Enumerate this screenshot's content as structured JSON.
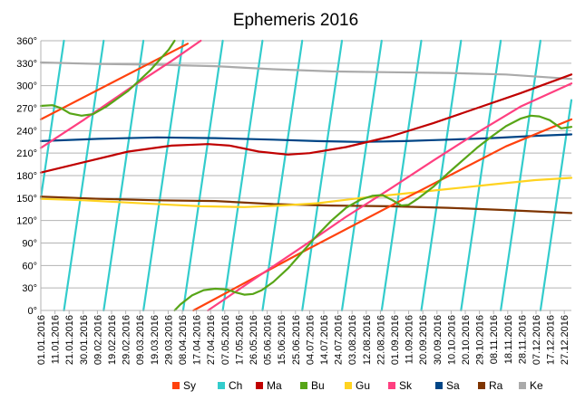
{
  "chart_data": {
    "type": "line",
    "title": "Ephemeris 2016",
    "xlabel": "",
    "ylabel": "",
    "ylim": [
      0,
      360
    ],
    "yticks": [
      "0°",
      "30°",
      "60°",
      "90°",
      "120°",
      "150°",
      "180°",
      "210°",
      "240°",
      "270°",
      "300°",
      "330°",
      "360°"
    ],
    "xticks": [
      "01.01.2016",
      "11.01.2016",
      "21.01.2016",
      "30.01.2016",
      "09.02.2016",
      "19.02.2016",
      "29.02.2016",
      "09.03.2016",
      "19.03.2016",
      "29.03.2016",
      "08.04.2016",
      "17.04.2016",
      "27.04.2016",
      "07.05.2016",
      "17.05.2016",
      "26.05.2016",
      "05.06.2016",
      "15.06.2016",
      "25.06.2016",
      "04.07.2016",
      "14.07.2016",
      "24.07.2016",
      "03.08.2016",
      "12.08.2016",
      "22.08.2016",
      "01.09.2016",
      "11.09.2016",
      "20.09.2016",
      "30.09.2016",
      "10.10.2016",
      "20.10.2016",
      "29.10.2016",
      "08.11.2016",
      "18.11.2016",
      "28.11.2016",
      "07.12.2016",
      "17.12.2016",
      "27.12.2016"
    ],
    "grid": true,
    "legend": "bottom",
    "x_unit_days": [
      0,
      365
    ],
    "series": [
      {
        "name": "Sy",
        "color": "#ff420e",
        "wrap": true,
        "points": [
          [
            0,
            255
          ],
          [
            75,
            330
          ],
          [
            101,
            356
          ],
          [
            105,
            0
          ],
          [
            180,
            78
          ],
          [
            250,
            149
          ],
          [
            320,
            219
          ],
          [
            365,
            255
          ]
        ]
      },
      {
        "name": "Ch",
        "color": "#33cccc",
        "wrap": true,
        "linear": {
          "start": 150,
          "rate": 13.18
        }
      },
      {
        "name": "Ma",
        "color": "#c00000",
        "wrap": true,
        "points": [
          [
            0,
            184
          ],
          [
            30,
            198
          ],
          [
            60,
            212
          ],
          [
            90,
            220
          ],
          [
            115,
            222
          ],
          [
            130,
            220
          ],
          [
            150,
            212
          ],
          [
            170,
            208
          ],
          [
            185,
            210
          ],
          [
            210,
            218
          ],
          [
            240,
            232
          ],
          [
            270,
            250
          ],
          [
            300,
            270
          ],
          [
            330,
            290
          ],
          [
            365,
            315
          ]
        ]
      },
      {
        "name": "Bu",
        "color": "#57a517",
        "wrap": true,
        "points": [
          [
            0,
            273
          ],
          [
            8,
            274
          ],
          [
            14,
            270
          ],
          [
            20,
            263
          ],
          [
            28,
            260
          ],
          [
            36,
            262
          ],
          [
            45,
            272
          ],
          [
            60,
            293
          ],
          [
            75,
            320
          ],
          [
            88,
            348
          ],
          [
            92,
            360
          ]
        ],
        "segments": [
          [
            [
              92,
              0
            ],
            [
              96,
              8
            ],
            [
              104,
              20
            ],
            [
              112,
              27
            ],
            [
              120,
              29
            ],
            [
              128,
              28
            ],
            [
              134,
              24
            ],
            [
              140,
              21
            ],
            [
              146,
              22
            ],
            [
              152,
              27
            ],
            [
              160,
              38
            ],
            [
              170,
              56
            ],
            [
              180,
              78
            ],
            [
              190,
              100
            ],
            [
              200,
              120
            ],
            [
              210,
              137
            ],
            [
              220,
              148
            ],
            [
              228,
              153
            ],
            [
              235,
              154
            ],
            [
              242,
              147
            ],
            [
              248,
              140
            ],
            [
              253,
              141
            ],
            [
              260,
              150
            ],
            [
              270,
              165
            ],
            [
              280,
              183
            ],
            [
              290,
              200
            ],
            [
              300,
              217
            ],
            [
              310,
              232
            ],
            [
              320,
              246
            ],
            [
              330,
              256
            ],
            [
              337,
              260
            ],
            [
              343,
              259
            ],
            [
              350,
              254
            ],
            [
              358,
              243
            ],
            [
              365,
              245
            ]
          ]
        ]
      },
      {
        "name": "Gu",
        "color": "#ffd320",
        "wrap": false,
        "points": [
          [
            0,
            149
          ],
          [
            30,
            147
          ],
          [
            60,
            144
          ],
          [
            90,
            141
          ],
          [
            110,
            139
          ],
          [
            140,
            138
          ],
          [
            165,
            140
          ],
          [
            190,
            143
          ],
          [
            220,
            150
          ],
          [
            250,
            156
          ],
          [
            280,
            162
          ],
          [
            310,
            168
          ],
          [
            340,
            174
          ],
          [
            365,
            177
          ]
        ]
      },
      {
        "name": "Sk",
        "color": "#ff3f80",
        "wrap": true,
        "points": [
          [
            0,
            217
          ],
          [
            30,
            255
          ],
          [
            60,
            295
          ],
          [
            90,
            333
          ],
          [
            110,
            360
          ]
        ],
        "segments": [
          [
            [
              115,
              0
            ],
            [
              150,
              46
            ],
            [
              180,
              85
            ],
            [
              210,
              125
            ],
            [
              240,
              162
            ],
            [
              270,
              200
            ],
            [
              300,
              237
            ],
            [
              330,
              272
            ],
            [
              365,
              303
            ]
          ]
        ]
      },
      {
        "name": "Sa",
        "color": "#004586",
        "wrap": false,
        "points": [
          [
            0,
            226
          ],
          [
            40,
            229
          ],
          [
            80,
            231
          ],
          [
            120,
            230
          ],
          [
            160,
            228
          ],
          [
            190,
            226
          ],
          [
            220,
            225
          ],
          [
            250,
            226
          ],
          [
            280,
            228
          ],
          [
            310,
            230
          ],
          [
            340,
            233
          ],
          [
            365,
            235
          ]
        ]
      },
      {
        "name": "Ra",
        "color": "#7e3400",
        "wrap": false,
        "points": [
          [
            0,
            152
          ],
          [
            40,
            149
          ],
          [
            80,
            147
          ],
          [
            120,
            146
          ],
          [
            160,
            142
          ],
          [
            200,
            140
          ],
          [
            240,
            139
          ],
          [
            280,
            137
          ],
          [
            320,
            134
          ],
          [
            365,
            130
          ]
        ]
      },
      {
        "name": "Ke",
        "color": "#aaaaaa",
        "wrap": false,
        "points": [
          [
            0,
            331
          ],
          [
            40,
            329
          ],
          [
            80,
            328
          ],
          [
            120,
            326
          ],
          [
            160,
            322
          ],
          [
            200,
            319
          ],
          [
            240,
            318
          ],
          [
            280,
            317
          ],
          [
            320,
            315
          ],
          [
            365,
            309
          ]
        ]
      }
    ]
  }
}
